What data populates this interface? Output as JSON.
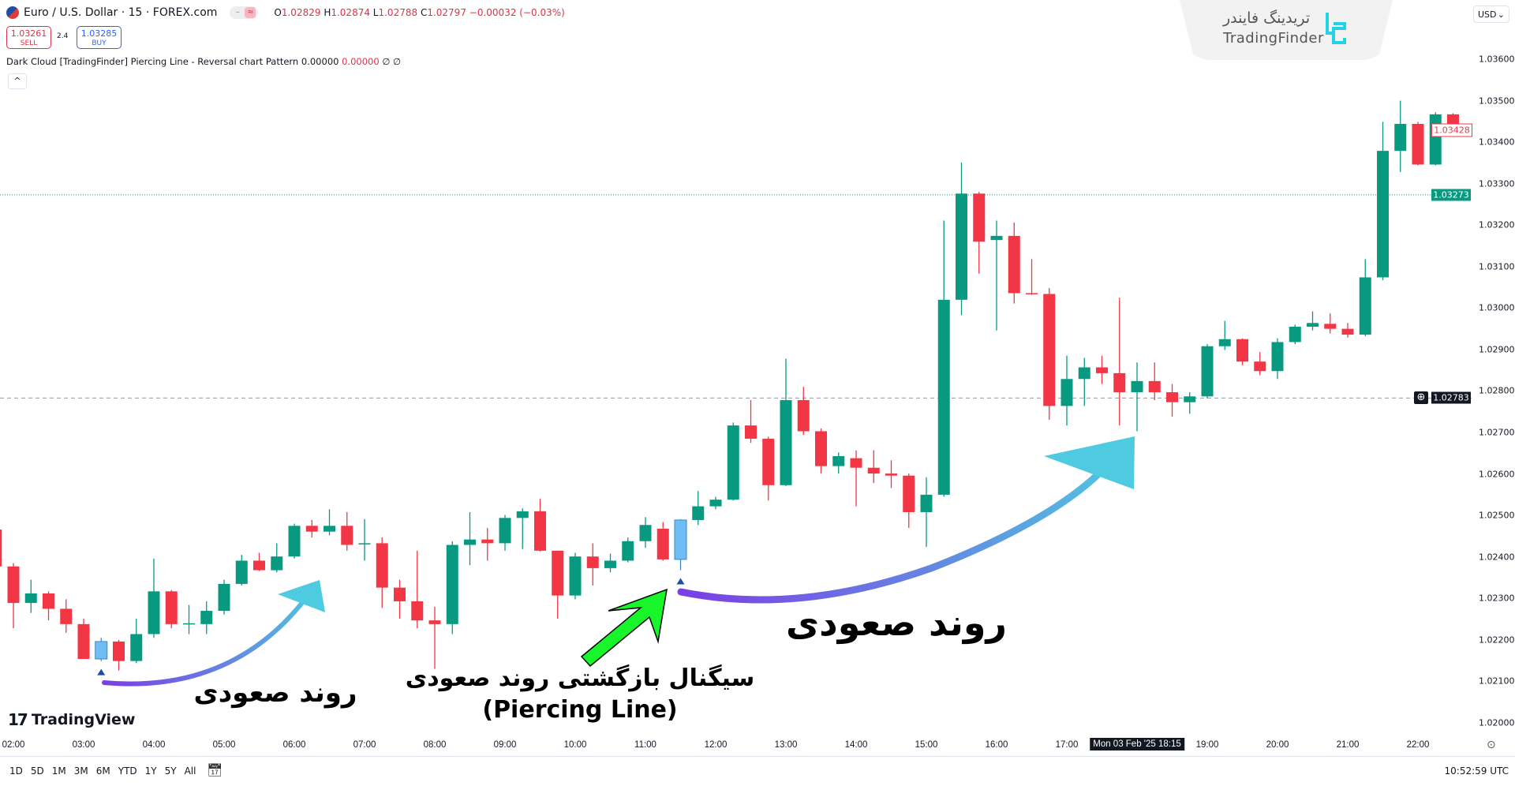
{
  "header": {
    "symbol_title": "Euro / U.S. Dollar · 15 · FOREX.com",
    "ohlc": {
      "o_label": "O",
      "o": "1.02829",
      "h_label": "H",
      "h": "1.02874",
      "l_label": "L",
      "l": "1.02788",
      "c_label": "C",
      "c": "1.02797",
      "change": "−0.00032 (−0.03%)"
    },
    "sell_price": "1.03261",
    "sell_label": "SELL",
    "spread": "2.4",
    "buy_price": "1.03285",
    "buy_label": "BUY",
    "indicator_name": "Dark Cloud [TradingFinder] Piercing Line - Reversal chart Pattern",
    "indicator_v1": "0.00000",
    "indicator_v2": "0.00000",
    "indicator_v3": "∅ ∅",
    "collapse_icon": "^"
  },
  "watermark": {
    "fa": "تریدینگ فایندر",
    "en": "TradingFinder"
  },
  "currency": "USD",
  "colors": {
    "up": "#089981",
    "down": "#f23645",
    "signal": "#6fbdf5",
    "accent": "#2962ff"
  },
  "price_axis": {
    "labels": [
      "1.03600",
      "1.03500",
      "1.03400",
      "1.03300",
      "1.03200",
      "1.03100",
      "1.03000",
      "1.02900",
      "1.02800",
      "1.02700",
      "1.02600",
      "1.02500",
      "1.02400",
      "1.02300",
      "1.02200",
      "1.02100",
      "1.02000"
    ],
    "last_price": "1.03428",
    "line_price": "1.03273",
    "crosshair_price": "1.02783"
  },
  "time_axis": {
    "labels": [
      "02:00",
      "03:00",
      "04:00",
      "05:00",
      "06:00",
      "07:00",
      "08:00",
      "09:00",
      "10:00",
      "11:00",
      "12:00",
      "13:00",
      "14:00",
      "15:00",
      "16:00",
      "17:00",
      "19:00",
      "20:00",
      "21:00",
      "22:00"
    ],
    "crosshair": "Mon 03 Feb '25   18:15"
  },
  "chart_data": {
    "type": "candlestick",
    "interval": "15",
    "ylim": [
      1.02,
      1.036
    ],
    "first_bar": "01:45",
    "signal_bars": [
      6,
      39
    ],
    "ohlc": [
      [
        1.02466,
        1.02484,
        1.02368,
        1.02377
      ],
      [
        1.02377,
        1.02385,
        1.02228,
        1.02289
      ],
      [
        1.02289,
        1.02345,
        1.02265,
        1.02312
      ],
      [
        1.02312,
        1.02317,
        1.02247,
        1.02275
      ],
      [
        1.02275,
        1.02298,
        1.02217,
        1.02238
      ],
      [
        1.02238,
        1.02251,
        1.02154,
        1.02154
      ],
      [
        1.02154,
        1.02205,
        1.02149,
        1.02196
      ],
      [
        1.02196,
        1.022,
        1.02126,
        1.02149
      ],
      [
        1.02149,
        1.02251,
        1.02144,
        1.02214
      ],
      [
        1.02214,
        1.02396,
        1.02205,
        1.02317
      ],
      [
        1.02317,
        1.0232,
        1.02228,
        1.02238
      ],
      [
        1.02238,
        1.02284,
        1.02214,
        1.0224
      ],
      [
        1.02238,
        1.02293,
        1.02214,
        1.0227
      ],
      [
        1.0227,
        1.02345,
        1.02261,
        1.02335
      ],
      [
        1.02335,
        1.02405,
        1.02331,
        1.02391
      ],
      [
        1.02391,
        1.0241,
        1.02366,
        1.02368
      ],
      [
        1.02368,
        1.02433,
        1.02363,
        1.02401
      ],
      [
        1.02401,
        1.0248,
        1.02396,
        1.02475
      ],
      [
        1.02475,
        1.02489,
        1.02447,
        1.02461
      ],
      [
        1.02461,
        1.02515,
        1.02452,
        1.02475
      ],
      [
        1.02475,
        1.02508,
        1.02415,
        1.02429
      ],
      [
        1.02433,
        1.02491,
        1.02391,
        1.02433
      ],
      [
        1.02433,
        1.02447,
        1.02277,
        1.02326
      ],
      [
        1.02326,
        1.02345,
        1.02251,
        1.02293
      ],
      [
        1.02293,
        1.02415,
        1.02228,
        1.02247
      ],
      [
        1.02247,
        1.0228,
        1.0213,
        1.02238
      ],
      [
        1.02238,
        1.02438,
        1.02214,
        1.02429
      ],
      [
        1.02429,
        1.02508,
        1.0238,
        1.02442
      ],
      [
        1.02442,
        1.0247,
        1.02391,
        1.02433
      ],
      [
        1.02433,
        1.02501,
        1.02415,
        1.02494
      ],
      [
        1.02494,
        1.02517,
        1.02419,
        1.0251
      ],
      [
        1.0251,
        1.0254,
        1.02413,
        1.02415
      ],
      [
        1.02415,
        1.02415,
        1.02251,
        1.02307
      ],
      [
        1.02307,
        1.0241,
        1.02298,
        1.02401
      ],
      [
        1.02401,
        1.02433,
        1.02331,
        1.02373
      ],
      [
        1.02373,
        1.02408,
        1.02363,
        1.02391
      ],
      [
        1.02391,
        1.02447,
        1.02387,
        1.02438
      ],
      [
        1.02438,
        1.02496,
        1.02422,
        1.02477
      ],
      [
        1.02468,
        1.02484,
        1.02391,
        1.02394
      ],
      [
        1.02394,
        1.02491,
        1.02368,
        1.02489
      ],
      [
        1.02489,
        1.02559,
        1.02477,
        1.02522
      ],
      [
        1.02522,
        1.02545,
        1.02515,
        1.02538
      ],
      [
        1.02538,
        1.02724,
        1.02536,
        1.02717
      ],
      [
        1.02717,
        1.02778,
        1.02675,
        1.02685
      ],
      [
        1.02685,
        1.0269,
        1.02536,
        1.02573
      ],
      [
        1.02573,
        1.02878,
        1.02571,
        1.02778
      ],
      [
        1.02778,
        1.0281,
        1.02694,
        1.02703
      ],
      [
        1.02703,
        1.0271,
        1.02601,
        1.02619
      ],
      [
        1.02619,
        1.02652,
        1.02601,
        1.02643
      ],
      [
        1.02638,
        1.02657,
        1.02522,
        1.02615
      ],
      [
        1.02615,
        1.02657,
        1.02578,
        1.02601
      ],
      [
        1.02601,
        1.02633,
        1.02566,
        1.02596
      ],
      [
        1.02596,
        1.02601,
        1.0247,
        1.02508
      ],
      [
        1.02508,
        1.02592,
        1.02424,
        1.0255
      ],
      [
        1.0255,
        1.03211,
        1.02545,
        1.0302
      ],
      [
        1.0302,
        1.03351,
        1.02983,
        1.03276
      ],
      [
        1.03276,
        1.0328,
        1.03083,
        1.0316
      ],
      [
        1.03164,
        1.03211,
        1.02946,
        1.03174
      ],
      [
        1.03174,
        1.03206,
        1.03011,
        1.03036
      ],
      [
        1.03036,
        1.03118,
        1.03032,
        1.03034
      ],
      [
        1.03034,
        1.03048,
        1.02731,
        1.02764
      ],
      [
        1.02764,
        1.02885,
        1.02717,
        1.02829
      ],
      [
        1.02829,
        1.0288,
        1.02764,
        1.02857
      ],
      [
        1.02857,
        1.02885,
        1.02817,
        1.02843
      ],
      [
        1.02843,
        1.03025,
        1.02717,
        1.02797
      ],
      [
        1.02797,
        1.02869,
        1.02703,
        1.02824
      ],
      [
        1.02824,
        1.02869,
        1.02778,
        1.02797
      ],
      [
        1.02797,
        1.02817,
        1.02738,
        1.02773
      ],
      [
        1.02773,
        1.02797,
        1.02745,
        1.02787
      ],
      [
        1.02787,
        1.02913,
        1.02782,
        1.02908
      ],
      [
        1.02908,
        1.02969,
        1.02899,
        1.02925
      ],
      [
        1.02925,
        1.02927,
        1.02862,
        1.02871
      ],
      [
        1.02871,
        1.02894,
        1.02838,
        1.02848
      ],
      [
        1.02848,
        1.02927,
        1.02829,
        1.02918
      ],
      [
        1.02918,
        1.0296,
        1.02913,
        1.02955
      ],
      [
        1.02955,
        1.02992,
        1.02946,
        1.02964
      ],
      [
        1.02962,
        1.02987,
        1.02939,
        1.0295
      ],
      [
        1.0295,
        1.02964,
        1.02929,
        1.02936
      ],
      [
        1.02936,
        1.03118,
        1.02932,
        1.03074
      ],
      [
        1.03074,
        1.03449,
        1.03067,
        1.03379
      ],
      [
        1.03379,
        1.035,
        1.03328,
        1.03444
      ],
      [
        1.03444,
        1.03449,
        1.03344,
        1.03346
      ],
      [
        1.03346,
        1.03472,
        1.03344,
        1.03467
      ],
      [
        1.03467,
        1.0347,
        1.03437,
        1.03437
      ],
      [
        1.03437,
        1.0344,
        1.03428,
        1.03428
      ]
    ]
  },
  "annotations": {
    "trend_label_1": "روند صعودی",
    "signal_label": "سیگنال بازگشتی روند صعودی",
    "signal_label_en": "(Piercing Line)",
    "trend_label_2": "روند صعودی"
  },
  "branding": {
    "tv_logo": "TradingView"
  },
  "range_bar": {
    "items": [
      "1D",
      "5D",
      "1M",
      "3M",
      "6M",
      "YTD",
      "1Y",
      "5Y",
      "All"
    ]
  },
  "clock": "10:52:59 UTC"
}
